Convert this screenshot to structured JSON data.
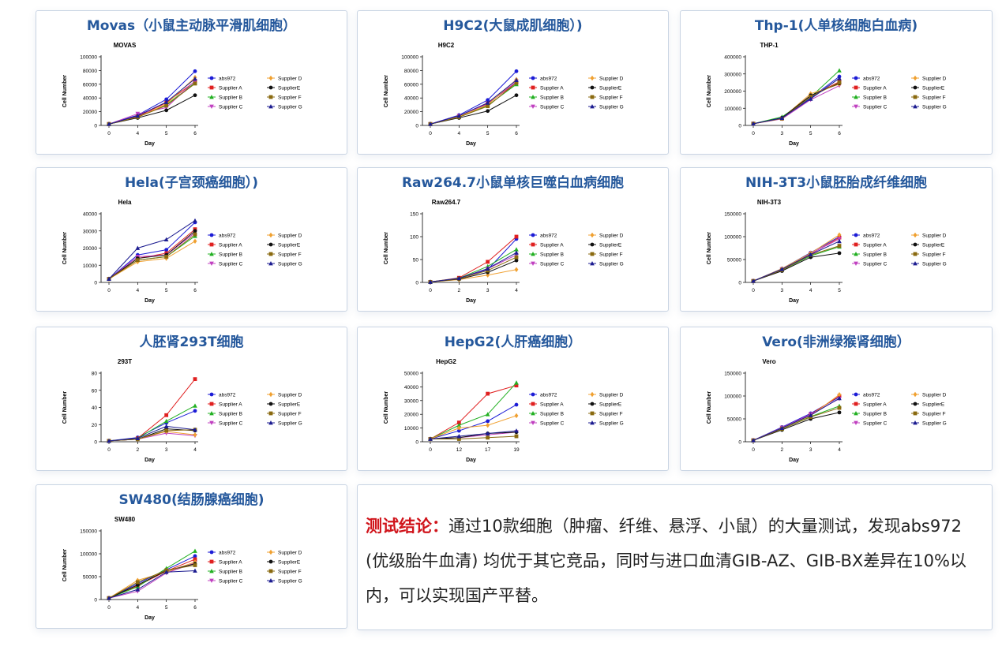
{
  "colors": {
    "title": "#25589c",
    "lead": "#d0141b",
    "series": [
      "#1c1cd6",
      "#e02020",
      "#22b022",
      "#c040c0",
      "#f0a030",
      "#111111",
      "#8a6a10",
      "#1c1c90"
    ]
  },
  "panels": [
    {
      "title": "Movas（小鼠主动脉平滑肌细胞）",
      "chart_data": {
        "type": "line",
        "title": "MOVAS",
        "xlabel": "Day",
        "ylabel": "Cell Number",
        "x": [
          "0",
          "4",
          "5",
          "6"
        ],
        "ylim": [
          0,
          100000
        ],
        "yticks": [
          "0",
          "20000",
          "40000",
          "60000",
          "80000",
          "100000"
        ],
        "series": [
          {
            "name": "abs972",
            "values": [
              2000,
              15000,
              38000,
              79000
            ]
          },
          {
            "name": "Supplier A",
            "values": [
              2000,
              13000,
              33000,
              64000
            ]
          },
          {
            "name": "Supplier B",
            "values": [
              2000,
              12000,
              30000,
              62000
            ]
          },
          {
            "name": "Supplier C",
            "values": [
              2000,
              17000,
              26000,
              65000
            ]
          },
          {
            "name": "Supplier D",
            "values": [
              2000,
              12000,
              31000,
              70000
            ]
          },
          {
            "name": "SupplierE",
            "values": [
              2000,
              11000,
              22000,
              44000
            ]
          },
          {
            "name": "Supplier F",
            "values": [
              2000,
              12000,
              29000,
              61000
            ]
          },
          {
            "name": "Supplier G",
            "values": [
              2000,
              14000,
              34000,
              68000
            ]
          }
        ]
      }
    },
    {
      "title": "H9C2(大鼠成肌细胞）)",
      "chart_data": {
        "type": "line",
        "title": "H9C2",
        "xlabel": "Day",
        "ylabel": "Cell Number",
        "x": [
          "0",
          "4",
          "5",
          "6"
        ],
        "ylim": [
          0,
          100000
        ],
        "yticks": [
          "0",
          "20000",
          "40000",
          "60000",
          "80000",
          "100000"
        ],
        "series": [
          {
            "name": "abs972",
            "values": [
              2000,
              15000,
              37000,
              79000
            ]
          },
          {
            "name": "Supplier A",
            "values": [
              2000,
              13000,
              32000,
              62000
            ]
          },
          {
            "name": "Supplier B",
            "values": [
              2000,
              12000,
              29000,
              60000
            ]
          },
          {
            "name": "Supplier C",
            "values": [
              2000,
              14000,
              31000,
              64000
            ]
          },
          {
            "name": "Supplier D",
            "values": [
              2000,
              13000,
              30000,
              67000
            ]
          },
          {
            "name": "SupplierE",
            "values": [
              2000,
              11000,
              21000,
              44000
            ]
          },
          {
            "name": "Supplier F",
            "values": [
              2000,
              12000,
              28000,
              62000
            ]
          },
          {
            "name": "Supplier G",
            "values": [
              2000,
              14000,
              33000,
              66000
            ]
          }
        ]
      }
    },
    {
      "title": "Thp-1(人单核细胞白血病)",
      "chart_data": {
        "type": "line",
        "title": "THP-1",
        "xlabel": "Day",
        "ylabel": "Cell Number",
        "x": [
          "0",
          "3",
          "5",
          "6"
        ],
        "ylim": [
          0,
          400000
        ],
        "yticks": [
          "0",
          "100000",
          "200000",
          "300000",
          "400000"
        ],
        "series": [
          {
            "name": "abs972",
            "values": [
              10000,
              45000,
              160000,
              285000
            ]
          },
          {
            "name": "Supplier A",
            "values": [
              10000,
              40000,
              170000,
              255000
            ]
          },
          {
            "name": "Supplier B",
            "values": [
              10000,
              50000,
              165000,
              320000
            ]
          },
          {
            "name": "Supplier C",
            "values": [
              10000,
              38000,
              150000,
              232000
            ]
          },
          {
            "name": "Supplier D",
            "values": [
              10000,
              42000,
              185000,
              240000
            ]
          },
          {
            "name": "SupplierE",
            "values": [
              10000,
              44000,
              175000,
              245000
            ]
          },
          {
            "name": "Supplier F",
            "values": [
              10000,
              40000,
              168000,
              250000
            ]
          },
          {
            "name": "Supplier G",
            "values": [
              10000,
              43000,
              155000,
              275000
            ]
          }
        ]
      }
    },
    {
      "title": "Hela(子宫颈癌细胞）)",
      "chart_data": {
        "type": "line",
        "title": "Hela",
        "xlabel": "Day",
        "ylabel": "Cell Number",
        "x": [
          "0",
          "4",
          "5",
          "6"
        ],
        "ylim": [
          0,
          40000
        ],
        "yticks": [
          "0",
          "10000",
          "20000",
          "30000",
          "40000"
        ],
        "series": [
          {
            "name": "abs972",
            "values": [
              2000,
              16000,
              19000,
              35000
            ]
          },
          {
            "name": "Supplier A",
            "values": [
              2000,
              14000,
              17000,
              31000
            ]
          },
          {
            "name": "Supplier B",
            "values": [
              2000,
              13000,
              15000,
              27000
            ]
          },
          {
            "name": "Supplier C",
            "values": [
              2000,
              15000,
              16000,
              29000
            ]
          },
          {
            "name": "Supplier D",
            "values": [
              2000,
              12000,
              14000,
              24000
            ]
          },
          {
            "name": "SupplierE",
            "values": [
              2000,
              14000,
              16000,
              30000
            ]
          },
          {
            "name": "Supplier F",
            "values": [
              2000,
              13000,
              15000,
              28000
            ]
          },
          {
            "name": "Supplier G",
            "values": [
              2000,
              20000,
              25000,
              36000
            ]
          }
        ]
      }
    },
    {
      "title": "Raw264.7小鼠单核巨噬白血病细胞",
      "chart_data": {
        "type": "line",
        "title": "Raw264.7",
        "xlabel": "Day",
        "ylabel": "Cell Number",
        "x": [
          "0",
          "2",
          "3",
          "4"
        ],
        "ylim": [
          0,
          150
        ],
        "yticks": [
          "0",
          "50",
          "100",
          "150"
        ],
        "series": [
          {
            "name": "abs972",
            "values": [
              1,
              8,
              28,
              95
            ]
          },
          {
            "name": "Supplier A",
            "values": [
              1,
              10,
              45,
              100
            ]
          },
          {
            "name": "Supplier B",
            "values": [
              1,
              9,
              35,
              72
            ]
          },
          {
            "name": "Supplier C",
            "values": [
              1,
              8,
              30,
              60
            ]
          },
          {
            "name": "Supplier D",
            "values": [
              1,
              6,
              16,
              28
            ]
          },
          {
            "name": "SupplierE",
            "values": [
              1,
              7,
              22,
              48
            ]
          },
          {
            "name": "Supplier F",
            "values": [
              1,
              8,
              26,
              55
            ]
          },
          {
            "name": "Supplier G",
            "values": [
              1,
              9,
              30,
              65
            ]
          }
        ]
      }
    },
    {
      "title": "NIH-3T3小鼠胚胎成纤维细胞",
      "chart_data": {
        "type": "line",
        "title": "NIH-3T3",
        "xlabel": "Day",
        "ylabel": "Cell Number",
        "x": [
          "0",
          "3",
          "4",
          "5"
        ],
        "ylim": [
          0,
          150000
        ],
        "yticks": [
          "0",
          "50000",
          "100000",
          "150000"
        ],
        "series": [
          {
            "name": "abs972",
            "values": [
              3000,
              30000,
              65000,
              100000
            ]
          },
          {
            "name": "Supplier A",
            "values": [
              3000,
              28000,
              62000,
              98000
            ]
          },
          {
            "name": "Supplier B",
            "values": [
              3000,
              27000,
              58000,
              78000
            ]
          },
          {
            "name": "Supplier C",
            "values": [
              3000,
              29000,
              63000,
              95000
            ]
          },
          {
            "name": "Supplier D",
            "values": [
              3000,
              30000,
              64000,
              104000
            ]
          },
          {
            "name": "SupplierE",
            "values": [
              3000,
              25000,
              55000,
              64000
            ]
          },
          {
            "name": "Supplier F",
            "values": [
              3000,
              27000,
              60000,
              80000
            ]
          },
          {
            "name": "Supplier G",
            "values": [
              3000,
              29000,
              61000,
              90000
            ]
          }
        ]
      }
    },
    {
      "title": "人胚肾293T细胞",
      "chart_data": {
        "type": "line",
        "title": "293T",
        "xlabel": "Day",
        "ylabel": "Cell Number",
        "x": [
          "0",
          "2",
          "3",
          "4"
        ],
        "ylim": [
          0,
          80
        ],
        "yticks": [
          "0",
          "20",
          "40",
          "60",
          "80"
        ],
        "series": [
          {
            "name": "abs972",
            "values": [
              1,
              5,
              22,
              36
            ]
          },
          {
            "name": "Supplier A",
            "values": [
              1,
              4,
              31,
              73
            ]
          },
          {
            "name": "Supplier B",
            "values": [
              1,
              4,
              24,
              42
            ]
          },
          {
            "name": "Supplier C",
            "values": [
              1,
              3,
              10,
              7
            ]
          },
          {
            "name": "Supplier D",
            "values": [
              1,
              3,
              12,
              8
            ]
          },
          {
            "name": "SupplierE",
            "values": [
              1,
              3,
              15,
              13
            ]
          },
          {
            "name": "Supplier F",
            "values": [
              1,
              3,
              13,
              14
            ]
          },
          {
            "name": "Supplier G",
            "values": [
              1,
              4,
              18,
              14
            ]
          }
        ]
      }
    },
    {
      "title": "HepG2(人肝癌细胞）",
      "chart_data": {
        "type": "line",
        "title": "HepG2",
        "xlabel": "Day",
        "ylabel": "Cell Number",
        "x": [
          "0",
          "12",
          "17",
          "19"
        ],
        "ylim": [
          0,
          50000
        ],
        "yticks": [
          "0",
          "10000",
          "20000",
          "30000",
          "40000",
          "50000"
        ],
        "series": [
          {
            "name": "abs972",
            "values": [
              2000,
              8000,
              15000,
              27000
            ]
          },
          {
            "name": "Supplier A",
            "values": [
              2000,
              14000,
              35000,
              41000
            ]
          },
          {
            "name": "Supplier B",
            "values": [
              2000,
              12000,
              20000,
              43000
            ]
          },
          {
            "name": "Supplier C",
            "values": [
              2000,
              3000,
              5000,
              7000
            ]
          },
          {
            "name": "Supplier D",
            "values": [
              2000,
              10000,
              12000,
              19000
            ]
          },
          {
            "name": "SupplierE",
            "values": [
              2000,
              3000,
              6000,
              7000
            ]
          },
          {
            "name": "Supplier F",
            "values": [
              2000,
              2000,
              3000,
              4000
            ]
          },
          {
            "name": "Supplier G",
            "values": [
              2000,
              4000,
              6000,
              8000
            ]
          }
        ]
      }
    },
    {
      "title": "Vero(非洲绿猴肾细胞）",
      "chart_data": {
        "type": "line",
        "title": "Vero",
        "xlabel": "Day",
        "ylabel": "Cell Number",
        "x": [
          "0",
          "2",
          "3",
          "4"
        ],
        "ylim": [
          0,
          150000
        ],
        "yticks": [
          "0",
          "50000",
          "100000",
          "150000"
        ],
        "series": [
          {
            "name": "abs972",
            "values": [
              3000,
              32000,
              62000,
              98000
            ]
          },
          {
            "name": "Supplier A",
            "values": [
              3000,
              30000,
              60000,
              100000
            ]
          },
          {
            "name": "Supplier B",
            "values": [
              3000,
              28000,
              55000,
              78000
            ]
          },
          {
            "name": "Supplier C",
            "values": [
              3000,
              31000,
              60000,
              94000
            ]
          },
          {
            "name": "Supplier D",
            "values": [
              3000,
              30000,
              57000,
              103000
            ]
          },
          {
            "name": "SupplierE",
            "values": [
              3000,
              26000,
              50000,
              64000
            ]
          },
          {
            "name": "Supplier F",
            "values": [
              3000,
              28000,
              54000,
              74000
            ]
          },
          {
            "name": "Supplier G",
            "values": [
              3000,
              30000,
              58000,
              95000
            ]
          }
        ]
      }
    },
    {
      "title": "SW480(结肠腺癌细胞)",
      "chart_data": {
        "type": "line",
        "title": "SW480",
        "xlabel": "Day",
        "ylabel": "Cell Number",
        "x": [
          "0",
          "4",
          "5",
          "6"
        ],
        "ylim": [
          0,
          150000
        ],
        "yticks": [
          "0",
          "50000",
          "100000",
          "150000"
        ],
        "series": [
          {
            "name": "abs972",
            "values": [
              3000,
              35000,
              65000,
              95000
            ]
          },
          {
            "name": "Supplier A",
            "values": [
              3000,
              30000,
              62000,
              88000
            ]
          },
          {
            "name": "Supplier B",
            "values": [
              3000,
              28000,
              68000,
              106000
            ]
          },
          {
            "name": "Supplier C",
            "values": [
              3000,
              18000,
              58000,
              80000
            ]
          },
          {
            "name": "Supplier D",
            "values": [
              3000,
              42000,
              60000,
              82000
            ]
          },
          {
            "name": "SupplierE",
            "values": [
              3000,
              32000,
              63000,
              78000
            ]
          },
          {
            "name": "Supplier F",
            "values": [
              3000,
              38000,
              64000,
              75000
            ]
          },
          {
            "name": "Supplier G",
            "values": [
              3000,
              22000,
              60000,
              63000
            ]
          }
        ]
      }
    }
  ],
  "conclusion": {
    "lead": "测试结论：",
    "text": "通过10款细胞（肿瘤、纤维、悬浮、小鼠）的大量测试，发现abs972 (优级胎牛血清) 均优于其它竞品，同时与进口血清GIB-AZ、GIB-BX差异在10%以内，可以实现国产平替。"
  }
}
